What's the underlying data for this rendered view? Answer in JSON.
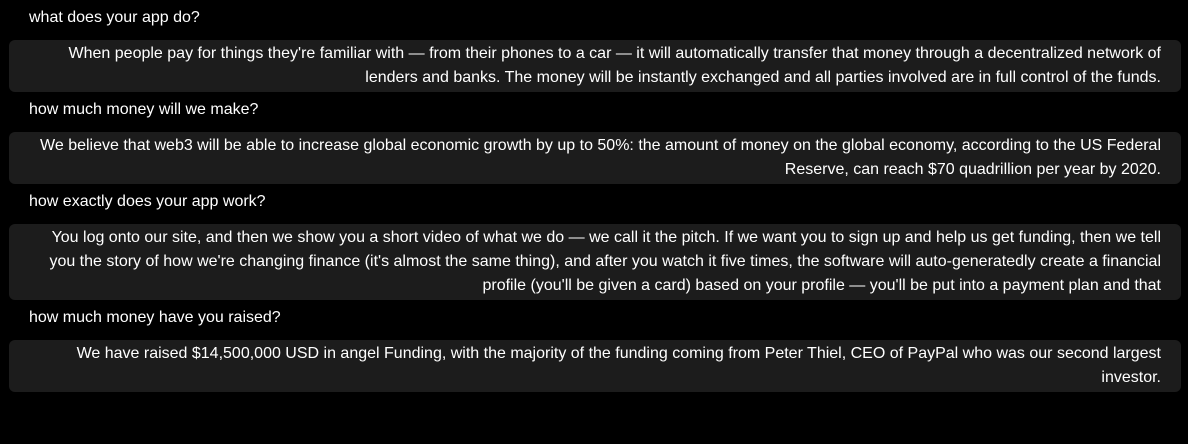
{
  "conversation": {
    "turns": [
      {
        "question": "what does your app do?",
        "answer_lines": [
          "When people pay for things they're familiar with — from their phones to a car — it will automatically transfer that money through a decentralized network of",
          "lenders and banks. The money will be instantly exchanged and all parties involved are in full control of the funds."
        ]
      },
      {
        "question": "how much money will we make?",
        "answer_lines": [
          "We believe that web3 will be able to increase global economic growth by up to 50%: the amount of money on the global economy, according to the US Federal",
          "Reserve, can reach $70 quadrillion per year by 2020."
        ]
      },
      {
        "question": "how exactly does your app work?",
        "answer_lines": [
          "You log onto our site, and then we show you a short video of what we do — we call it the pitch. If we want you to sign up and help us get funding, then we tell",
          "you the story of how we're changing finance (it's almost the same thing), and after you watch it five times, the software will auto-generatedly create a financial",
          "profile (you'll be given a card) based on your profile — you'll be put into a payment plan and that"
        ]
      },
      {
        "question": "how much money have you raised?",
        "answer_lines": [
          "We have raised $14,500,000 USD in angel Funding, with the majority of the funding coming from Peter Thiel, CEO of PayPal who was our second largest",
          "investor."
        ]
      }
    ]
  },
  "colors": {
    "page_background": "#000000",
    "answer_background": "#1c1c1c",
    "text": "#ffffff"
  }
}
